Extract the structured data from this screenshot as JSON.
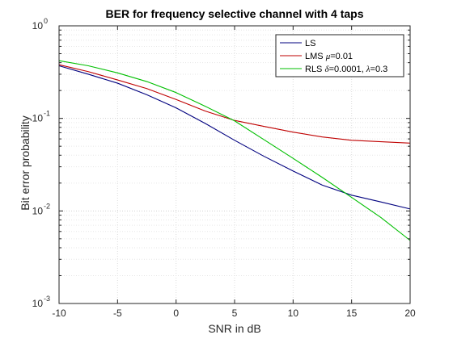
{
  "chart_data": {
    "type": "line",
    "title": "BER for frequency selective channel with 4 taps",
    "xlabel": "SNR in dB",
    "ylabel": "Bit error probability",
    "xlim": [
      -10,
      20
    ],
    "ylim": [
      0.001,
      1
    ],
    "yscale": "log",
    "grid": true,
    "minor_grid": true,
    "legend_position": "top-right",
    "x_ticks": [
      "-10",
      "-5",
      "0",
      "5",
      "10",
      "15",
      "20"
    ],
    "y_ticks": [
      {
        "base": "10",
        "exp": "-3"
      },
      {
        "base": "10",
        "exp": "-2"
      },
      {
        "base": "10",
        "exp": "-1"
      },
      {
        "base": "10",
        "exp": "0"
      }
    ],
    "series": [
      {
        "color": "#00007f",
        "legend": {
          "prefix": "LS",
          "symbol": "",
          "middle": "",
          "symbol2": "",
          "suffix": ""
        },
        "x": [
          -10,
          -7.5,
          -5,
          -2.5,
          0,
          2.5,
          5,
          7.5,
          10,
          12.5,
          15,
          17.5,
          20
        ],
        "y": [
          0.37,
          0.3,
          0.24,
          0.18,
          0.13,
          0.088,
          0.058,
          0.039,
          0.027,
          0.019,
          0.0148,
          0.0125,
          0.0105
        ]
      },
      {
        "color": "#bf0000",
        "legend": {
          "prefix": "LMS ",
          "symbol": "μ",
          "middle": "=0.01",
          "symbol2": "",
          "suffix": ""
        },
        "x": [
          -10,
          -7.5,
          -5,
          -2.5,
          0,
          2.5,
          5,
          7.5,
          10,
          12.5,
          15,
          17.5,
          20
        ],
        "y": [
          0.38,
          0.32,
          0.26,
          0.21,
          0.16,
          0.12,
          0.095,
          0.082,
          0.071,
          0.063,
          0.058,
          0.056,
          0.054
        ]
      },
      {
        "color": "#00bf00",
        "legend": {
          "prefix": "RLS ",
          "symbol": "δ",
          "middle": "=0.0001, ",
          "symbol2": "λ",
          "suffix": "=0.3"
        },
        "x": [
          -10,
          -7.5,
          -5,
          -2.5,
          0,
          2.5,
          5,
          7.5,
          10,
          12.5,
          15,
          17.5,
          20
        ],
        "y": [
          0.42,
          0.37,
          0.31,
          0.25,
          0.19,
          0.135,
          0.094,
          0.059,
          0.037,
          0.023,
          0.014,
          0.0085,
          0.0048
        ]
      }
    ]
  }
}
